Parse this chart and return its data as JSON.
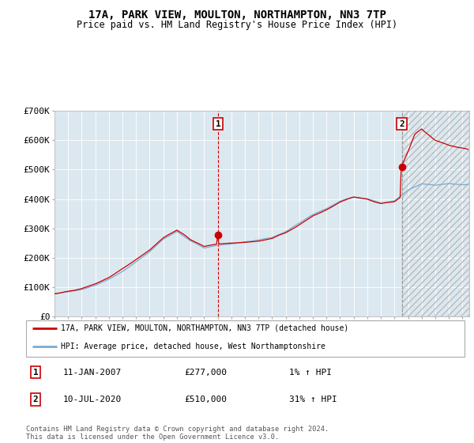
{
  "title1": "17A, PARK VIEW, MOULTON, NORTHAMPTON, NN3 7TP",
  "title2": "Price paid vs. HM Land Registry's House Price Index (HPI)",
  "hpi_label": "HPI: Average price, detached house, West Northamptonshire",
  "property_label": "17A, PARK VIEW, MOULTON, NORTHAMPTON, NN3 7TP (detached house)",
  "annotation1": {
    "label": "1",
    "date": "11-JAN-2007",
    "price": 277000,
    "pct": "1% ↑ HPI"
  },
  "annotation2": {
    "label": "2",
    "date": "10-JUL-2020",
    "price": 510000,
    "pct": "31% ↑ HPI"
  },
  "footer": "Contains HM Land Registry data © Crown copyright and database right 2024.\nThis data is licensed under the Open Government Licence v3.0.",
  "hpi_color": "#7aaad0",
  "property_color": "#cc0000",
  "plot_bg": "#dce8f0",
  "ylim": [
    0,
    700000
  ],
  "yticks": [
    0,
    100000,
    200000,
    300000,
    400000,
    500000,
    600000,
    700000
  ],
  "ytick_labels": [
    "£0",
    "£100K",
    "£200K",
    "£300K",
    "£400K",
    "£500K",
    "£600K",
    "£700K"
  ],
  "vline1_color": "#cc0000",
  "vline2_color": "#999999",
  "sale1_year": 2007.04,
  "sale2_year": 2020.54,
  "sale1_value": 277000,
  "sale2_value": 510000,
  "xstart": 1995,
  "xend": 2025.5
}
